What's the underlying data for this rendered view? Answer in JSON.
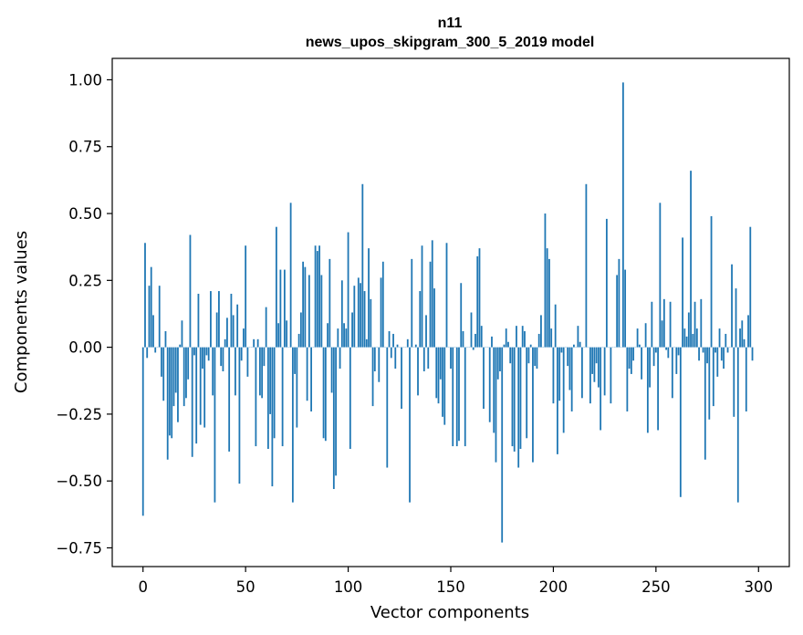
{
  "chart_data": {
    "type": "bar",
    "title": "n11",
    "subtitle": "news_upos_skipgram_300_5_2019 model",
    "xlabel": "Vector components",
    "ylabel": "Components values",
    "xlim": [
      -15,
      315
    ],
    "ylim": [
      -0.82,
      1.08
    ],
    "xticks": [
      0,
      50,
      100,
      150,
      200,
      250,
      300
    ],
    "xtick_labels": [
      "0",
      "50",
      "100",
      "150",
      "200",
      "250",
      "300"
    ],
    "yticks": [
      -0.75,
      -0.5,
      -0.25,
      0.0,
      0.25,
      0.5,
      0.75,
      1.0
    ],
    "ytick_labels": [
      "−0.75",
      "−0.50",
      "−0.25",
      "0.00",
      "0.25",
      "0.50",
      "0.75",
      "1.00"
    ],
    "grid": false,
    "bar_color": "#1f77b4",
    "values": [
      -0.63,
      0.39,
      -0.04,
      0.23,
      0.3,
      0.12,
      -0.02,
      0.0,
      0.23,
      -0.11,
      -0.2,
      0.06,
      -0.42,
      -0.33,
      -0.34,
      -0.22,
      -0.17,
      -0.28,
      0.01,
      0.1,
      -0.22,
      -0.19,
      -0.12,
      0.42,
      -0.41,
      -0.03,
      -0.36,
      0.2,
      -0.29,
      -0.08,
      -0.3,
      -0.03,
      -0.05,
      0.21,
      -0.18,
      -0.58,
      0.13,
      0.21,
      -0.07,
      -0.09,
      0.03,
      0.11,
      -0.39,
      0.2,
      0.12,
      -0.18,
      0.16,
      -0.51,
      -0.05,
      0.07,
      0.38,
      -0.11,
      0.0,
      0.0,
      0.03,
      -0.37,
      0.03,
      -0.18,
      -0.19,
      -0.07,
      0.15,
      -0.38,
      -0.25,
      -0.52,
      -0.34,
      0.45,
      0.09,
      0.29,
      -0.37,
      0.29,
      0.1,
      0.0,
      0.54,
      -0.58,
      -0.1,
      -0.3,
      0.05,
      0.13,
      0.32,
      0.3,
      -0.2,
      0.27,
      -0.24,
      0.0,
      0.38,
      0.36,
      0.38,
      0.27,
      -0.34,
      -0.35,
      0.09,
      0.33,
      -0.17,
      -0.53,
      -0.48,
      0.07,
      -0.08,
      0.25,
      0.09,
      0.07,
      0.43,
      -0.38,
      0.13,
      0.23,
      0.0,
      0.26,
      0.24,
      0.61,
      0.21,
      0.03,
      0.37,
      0.18,
      -0.22,
      -0.09,
      0.0,
      -0.13,
      0.26,
      0.32,
      0.0,
      -0.45,
      0.06,
      -0.04,
      0.05,
      -0.08,
      0.01,
      0.0,
      -0.23,
      0.0,
      0.0,
      0.03,
      -0.58,
      0.33,
      0.0,
      0.01,
      -0.18,
      0.21,
      0.38,
      -0.09,
      0.12,
      -0.08,
      0.32,
      0.4,
      0.22,
      -0.19,
      -0.21,
      -0.12,
      -0.26,
      -0.29,
      0.39,
      0.0,
      -0.08,
      -0.37,
      0.0,
      -0.37,
      -0.35,
      0.24,
      0.06,
      -0.37,
      0.0,
      0.0,
      0.13,
      -0.01,
      0.05,
      0.34,
      0.37,
      0.08,
      -0.23,
      0.0,
      0.0,
      -0.28,
      0.04,
      -0.32,
      -0.43,
      -0.12,
      -0.09,
      -0.73,
      0.01,
      0.07,
      0.02,
      -0.06,
      -0.37,
      -0.39,
      0.08,
      -0.45,
      -0.38,
      0.08,
      0.06,
      -0.34,
      -0.06,
      0.01,
      -0.43,
      -0.07,
      -0.08,
      0.05,
      0.12,
      0.0,
      0.5,
      0.37,
      0.33,
      0.07,
      -0.21,
      0.16,
      -0.4,
      -0.2,
      -0.02,
      -0.32,
      0.0,
      -0.07,
      -0.16,
      -0.24,
      0.01,
      0.0,
      0.08,
      0.02,
      -0.19,
      0.0,
      0.61,
      0.0,
      -0.21,
      -0.1,
      -0.13,
      -0.06,
      -0.15,
      -0.31,
      0.0,
      -0.18,
      0.48,
      0.0,
      -0.21,
      0.0,
      0.0,
      0.27,
      0.33,
      0.0,
      0.99,
      0.29,
      -0.24,
      -0.08,
      -0.1,
      -0.05,
      0.0,
      0.07,
      0.01,
      -0.12,
      0.0,
      0.09,
      -0.32,
      -0.15,
      0.17,
      -0.07,
      -0.02,
      -0.31,
      0.54,
      0.1,
      0.18,
      -0.01,
      -0.04,
      0.17,
      -0.19,
      0.0,
      -0.1,
      -0.03,
      -0.56,
      0.41,
      0.07,
      0.04,
      0.13,
      0.66,
      0.05,
      0.17,
      0.07,
      -0.05,
      0.18,
      -0.02,
      -0.42,
      -0.06,
      -0.27,
      0.49,
      -0.22,
      -0.02,
      -0.11,
      0.07,
      -0.05,
      -0.08,
      0.05,
      -0.02,
      0.0,
      0.31,
      -0.26,
      0.22,
      -0.58,
      0.07,
      0.1,
      0.03,
      -0.24,
      0.12,
      0.45,
      -0.05
    ]
  }
}
